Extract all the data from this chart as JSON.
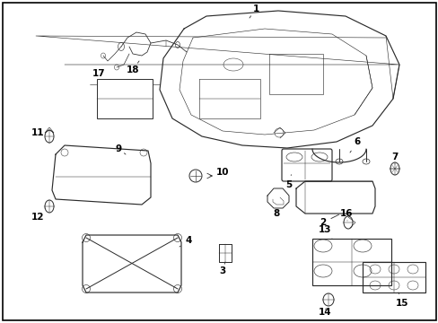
{
  "background_color": "#ffffff",
  "border_color": "#000000",
  "text_color": "#000000",
  "figsize": [
    4.89,
    3.6
  ],
  "dpi": 100,
  "line_color": "#2a2a2a",
  "lw": 0.7
}
